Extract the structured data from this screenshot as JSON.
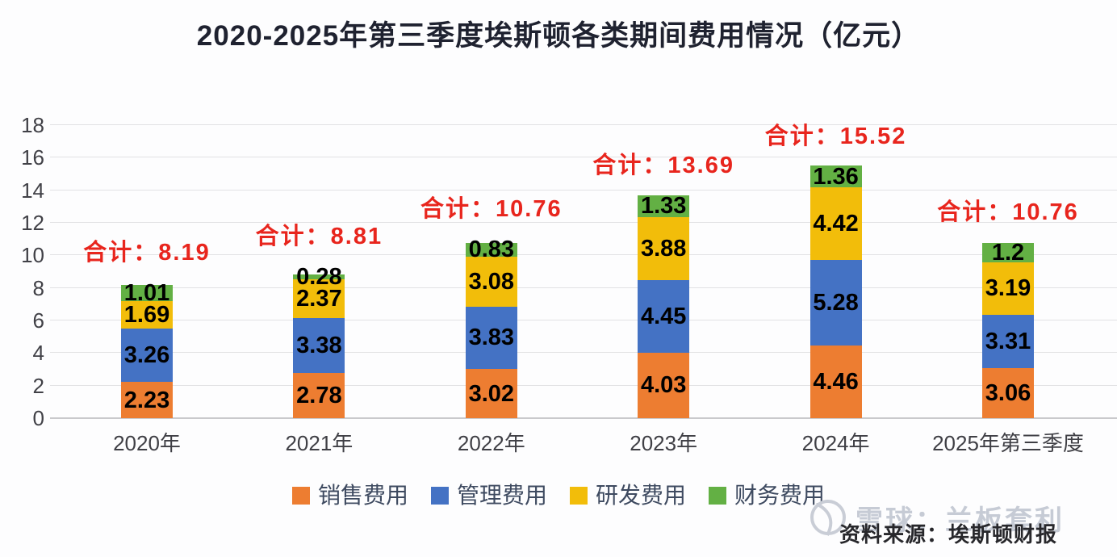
{
  "title": "2020-2025年第三季度埃斯顿各类期间费用情况（亿元）",
  "chart_data": {
    "type": "bar",
    "stacked": true,
    "title": "2020-2025年第三季度埃斯顿各类期间费用情况（亿元）",
    "unit": "亿元",
    "categories": [
      "2020年",
      "2021年",
      "2022年",
      "2023年",
      "2024年",
      "2025年第三季度"
    ],
    "series": [
      {
        "name": "销售费用",
        "color": "#ED7D31",
        "values": [
          2.23,
          2.78,
          3.02,
          4.03,
          4.46,
          3.06
        ]
      },
      {
        "name": "管理费用",
        "color": "#4472C4",
        "values": [
          3.26,
          3.38,
          3.83,
          4.45,
          5.28,
          3.31
        ]
      },
      {
        "name": "研发费用",
        "color": "#F2BD0A",
        "values": [
          1.69,
          2.37,
          3.08,
          3.88,
          4.42,
          3.19
        ]
      },
      {
        "name": "财务费用",
        "color": "#63B044",
        "values": [
          1.01,
          0.28,
          0.83,
          1.33,
          1.36,
          1.2
        ]
      }
    ],
    "totals": {
      "label_prefix": "合计：",
      "values": [
        "8.19",
        "8.81",
        "10.76",
        "13.69",
        "15.52",
        "10.76"
      ],
      "color": "#E8251D"
    },
    "value_label_color": "#000000",
    "y_ticks": [
      0,
      2,
      4,
      6,
      8,
      10,
      12,
      14,
      16,
      18
    ],
    "ylim": [
      0,
      18
    ],
    "grid": true,
    "legend_position": "bottom"
  },
  "footer": {
    "source_text": "资料来源：埃斯顿财报"
  },
  "watermark": {
    "text": "雪球：兰板套利",
    "logo": "xueqiu-logo"
  }
}
